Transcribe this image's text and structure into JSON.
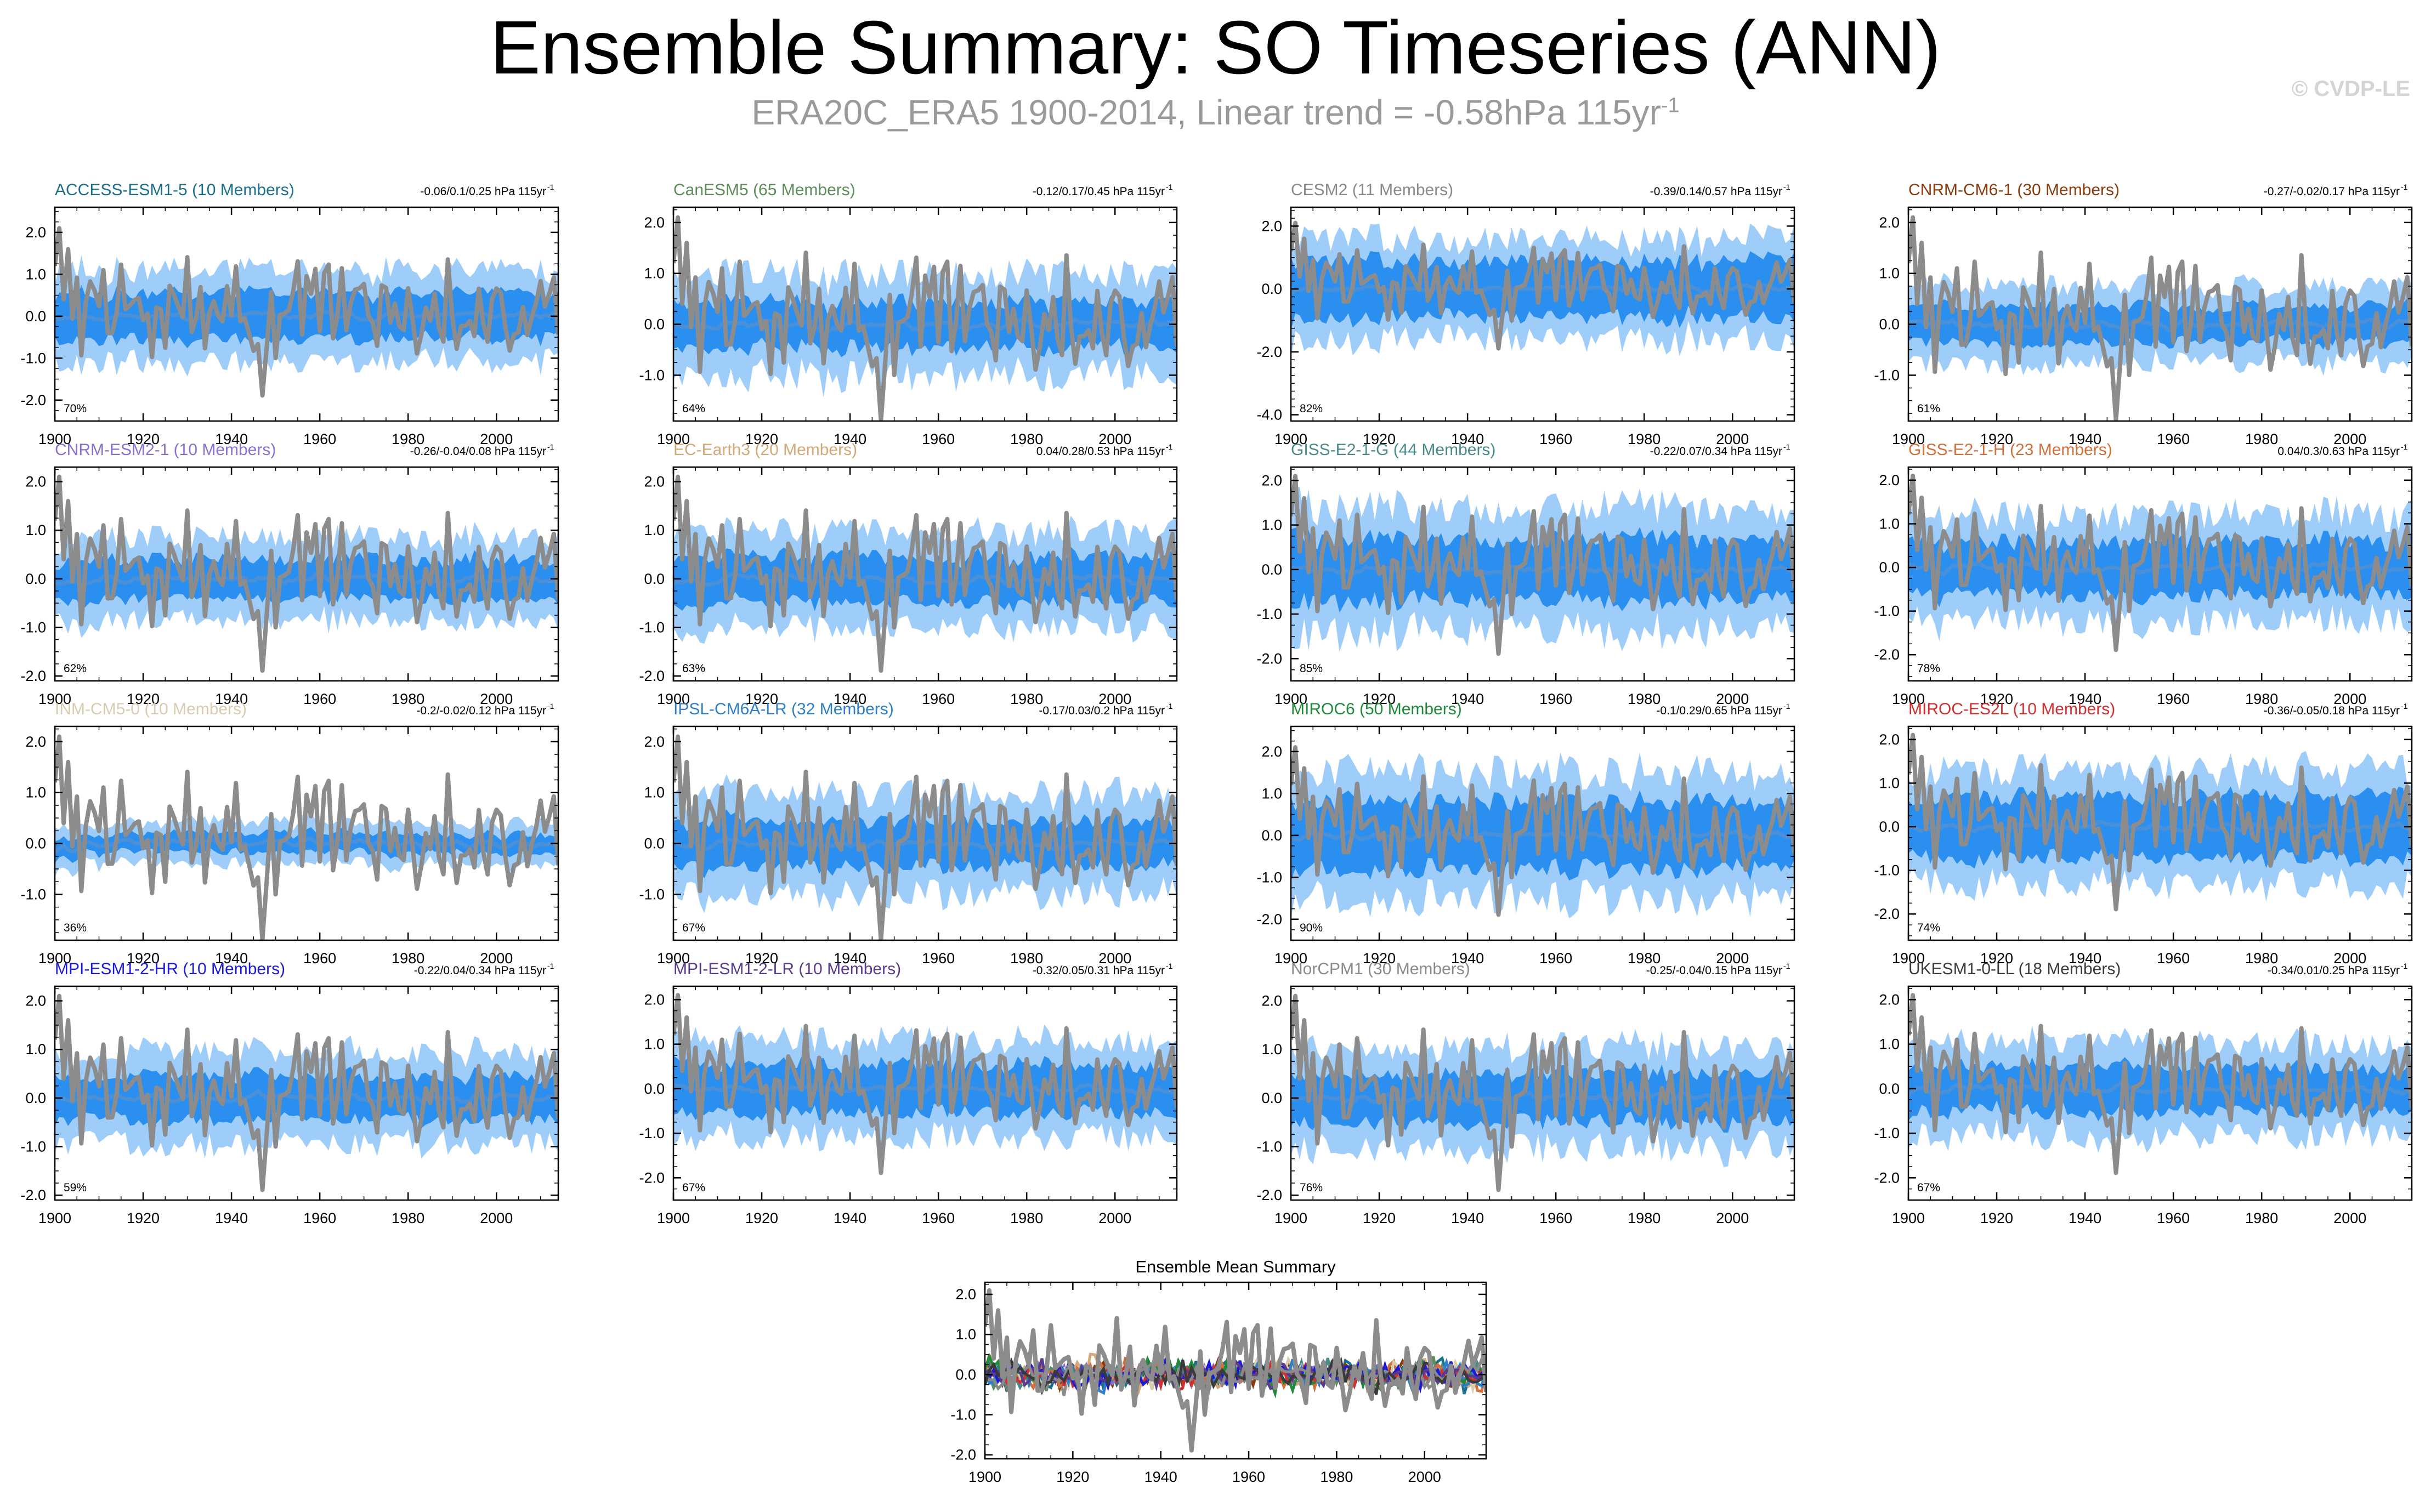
{
  "page": {
    "title": "Ensemble Summary: SO Timeseries (ANN)",
    "subtitle_main": "ERA20C_ERA5 1900-2014, Linear trend = -0.58hPa 115yr",
    "subtitle_sup": "-1",
    "copyright": "© CVDP-LE"
  },
  "colors": {
    "obs": "#8c8c8c",
    "ens_mean": "#4a90d9",
    "band_inner": "#2b8ff0",
    "band_outer": "#9fcdfa"
  },
  "chart_data": [
    {
      "type": "line",
      "title": "ACCESS-ESM1-5 (10 Members)",
      "title_color": "#1a6f8a",
      "trend": "-0.06/0.1/0.25 hPa 115yr",
      "pct": "70%",
      "ylim": [
        -2.5,
        2.6
      ],
      "yticks": [
        -2,
        -1,
        0,
        1,
        2
      ],
      "ytick_labels": [
        "-2.0",
        "-1.0",
        "0.0",
        "1.0",
        "2.0"
      ],
      "xlim": [
        1900,
        2014
      ],
      "xticks": [
        1900,
        1920,
        1940,
        1960,
        1980,
        2000
      ],
      "inner": 0.55,
      "outer": 1.1,
      "seed": 11
    },
    {
      "type": "line",
      "title": "CanESM5 (65 Members)",
      "title_color": "#5b8c5a",
      "trend": "-0.12/0.17/0.45 hPa 115yr",
      "pct": "64%",
      "ylim": [
        -1.9,
        2.3
      ],
      "yticks": [
        -1,
        0,
        1,
        2
      ],
      "ytick_labels": [
        "-1.0",
        "0.0",
        "1.0",
        "2.0"
      ],
      "xlim": [
        1900,
        2014
      ],
      "xticks": [
        1900,
        1920,
        1940,
        1960,
        1980,
        2000
      ],
      "inner": 0.45,
      "outer": 1.0,
      "seed": 23
    },
    {
      "type": "line",
      "title": "CESM2 (11 Members)",
      "title_color": "#8a8a8a",
      "trend": "-0.39/0.14/0.57 hPa 115yr",
      "pct": "82%",
      "ylim": [
        -4.2,
        2.6
      ],
      "yticks": [
        -4,
        -2,
        0,
        2
      ],
      "ytick_labels": [
        "-4.0",
        "-2.0",
        "0.0",
        "2.0"
      ],
      "xlim": [
        1900,
        2014
      ],
      "xticks": [
        1900,
        1920,
        1940,
        1960,
        1980,
        2000
      ],
      "inner": 0.9,
      "outer": 1.6,
      "seed": 37
    },
    {
      "type": "line",
      "title": "CNRM-CM6-1 (30 Members)",
      "title_color": "#8b3a0e",
      "trend": "-0.27/-0.02/0.17 hPa 115yr",
      "pct": "61%",
      "ylim": [
        -1.9,
        2.3
      ],
      "yticks": [
        -1,
        0,
        1,
        2
      ],
      "ytick_labels": [
        "-1.0",
        "0.0",
        "1.0",
        "2.0"
      ],
      "xlim": [
        1900,
        2014
      ],
      "xticks": [
        1900,
        1920,
        1940,
        1960,
        1980,
        2000
      ],
      "inner": 0.35,
      "outer": 0.75,
      "seed": 41
    },
    {
      "type": "line",
      "title": "CNRM-ESM2-1 (10 Members)",
      "title_color": "#8a6fd0",
      "trend": "-0.26/-0.04/0.08 hPa 115yr",
      "pct": "62%",
      "ylim": [
        -2.1,
        2.3
      ],
      "yticks": [
        -2,
        -1,
        0,
        1,
        2
      ],
      "ytick_labels": [
        "-2.0",
        "-1.0",
        "0.0",
        "1.0",
        "2.0"
      ],
      "xlim": [
        1900,
        2014
      ],
      "xticks": [
        1900,
        1920,
        1940,
        1960,
        1980,
        2000
      ],
      "inner": 0.4,
      "outer": 0.85,
      "seed": 53
    },
    {
      "type": "line",
      "title": "EC-Earth3 (20 Members)",
      "title_color": "#d4a878",
      "trend": "0.04/0.28/0.53 hPa 115yr",
      "pct": "63%",
      "ylim": [
        -2.1,
        2.3
      ],
      "yticks": [
        -2,
        -1,
        0,
        1,
        2
      ],
      "ytick_labels": [
        "-2.0",
        "-1.0",
        "0.0",
        "1.0",
        "2.0"
      ],
      "xlim": [
        1900,
        2014
      ],
      "xticks": [
        1900,
        1920,
        1940,
        1960,
        1980,
        2000
      ],
      "inner": 0.45,
      "outer": 0.95,
      "seed": 67
    },
    {
      "type": "line",
      "title": "GISS-E2-1-G (44 Members)",
      "title_color": "#4a8a8a",
      "trend": "-0.22/0.07/0.34 hPa 115yr",
      "pct": "85%",
      "ylim": [
        -2.5,
        2.3
      ],
      "yticks": [
        -2,
        -1,
        0,
        1,
        2
      ],
      "ytick_labels": [
        "-2.0",
        "-1.0",
        "0.0",
        "1.0",
        "2.0"
      ],
      "xlim": [
        1900,
        2014
      ],
      "xticks": [
        1900,
        1920,
        1940,
        1960,
        1980,
        2000
      ],
      "inner": 0.7,
      "outer": 1.4,
      "seed": 71
    },
    {
      "type": "line",
      "title": "GISS-E2-1-H (23 Members)",
      "title_color": "#d0703a",
      "trend": "0.04/0.3/0.63 hPa 115yr",
      "pct": "78%",
      "ylim": [
        -2.6,
        2.3
      ],
      "yticks": [
        -2,
        -1,
        0,
        1,
        2
      ],
      "ytick_labels": [
        "-2.0",
        "-1.0",
        "0.0",
        "1.0",
        "2.0"
      ],
      "xlim": [
        1900,
        2014
      ],
      "xticks": [
        1900,
        1920,
        1940,
        1960,
        1980,
        2000
      ],
      "inner": 0.6,
      "outer": 1.2,
      "seed": 83
    },
    {
      "type": "line",
      "title": "INM-CM5-0 (10 Members)",
      "title_color": "#d8ccb0",
      "trend": "-0.2/-0.02/0.12 hPa 115yr",
      "pct": "36%",
      "ylim": [
        -1.9,
        2.3
      ],
      "yticks": [
        -1,
        0,
        1,
        2
      ],
      "ytick_labels": [
        "-1.0",
        "0.0",
        "1.0",
        "2.0"
      ],
      "xlim": [
        1900,
        2014
      ],
      "xticks": [
        1900,
        1920,
        1940,
        1960,
        1980,
        2000
      ],
      "inner": 0.18,
      "outer": 0.4,
      "seed": 97
    },
    {
      "type": "line",
      "title": "IPSL-CM6A-LR (32 Members)",
      "title_color": "#2f7fc8",
      "trend": "-0.17/0.03/0.2 hPa 115yr",
      "pct": "67%",
      "ylim": [
        -1.9,
        2.3
      ],
      "yticks": [
        -1,
        0,
        1,
        2
      ],
      "ytick_labels": [
        "-1.0",
        "0.0",
        "1.0",
        "2.0"
      ],
      "xlim": [
        1900,
        2014
      ],
      "xticks": [
        1900,
        1920,
        1940,
        1960,
        1980,
        2000
      ],
      "inner": 0.45,
      "outer": 1.0,
      "seed": 101
    },
    {
      "type": "line",
      "title": "MIROC6 (50 Members)",
      "title_color": "#1f8a3a",
      "trend": "-0.1/0.29/0.65 hPa 115yr",
      "pct": "90%",
      "ylim": [
        -2.5,
        2.6
      ],
      "yticks": [
        -2,
        -1,
        0,
        1,
        2
      ],
      "ytick_labels": [
        "-2.0",
        "-1.0",
        "0.0",
        "1.0",
        "2.0"
      ],
      "xlim": [
        1900,
        2014
      ],
      "xticks": [
        1900,
        1920,
        1940,
        1960,
        1980,
        2000
      ],
      "inner": 0.8,
      "outer": 1.5,
      "seed": 113
    },
    {
      "type": "line",
      "title": "MIROC-ES2L (10 Members)",
      "title_color": "#d03030",
      "trend": "-0.36/-0.05/0.18 hPa 115yr",
      "pct": "74%",
      "ylim": [
        -2.6,
        2.3
      ],
      "yticks": [
        -2,
        -1,
        0,
        1,
        2
      ],
      "ytick_labels": [
        "-2.0",
        "-1.0",
        "0.0",
        "1.0",
        "2.0"
      ],
      "xlim": [
        1900,
        2014
      ],
      "xticks": [
        1900,
        1920,
        1940,
        1960,
        1980,
        2000
      ],
      "inner": 0.7,
      "outer": 1.3,
      "seed": 127
    },
    {
      "type": "line",
      "title": "MPI-ESM1-2-HR (10 Members)",
      "title_color": "#1a1ad8",
      "trend": "-0.22/0.04/0.34 hPa 115yr",
      "pct": "59%",
      "ylim": [
        -2.1,
        2.3
      ],
      "yticks": [
        -2,
        -1,
        0,
        1,
        2
      ],
      "ytick_labels": [
        "-2.0",
        "-1.0",
        "0.0",
        "1.0",
        "2.0"
      ],
      "xlim": [
        1900,
        2014
      ],
      "xticks": [
        1900,
        1920,
        1940,
        1960,
        1980,
        2000
      ],
      "inner": 0.45,
      "outer": 0.95,
      "seed": 131
    },
    {
      "type": "line",
      "title": "MPI-ESM1-2-LR (10 Members)",
      "title_color": "#5a3a8a",
      "trend": "-0.32/0.05/0.31 hPa 115yr",
      "pct": "67%",
      "ylim": [
        -2.5,
        2.3
      ],
      "yticks": [
        -2,
        -1,
        0,
        1,
        2
      ],
      "ytick_labels": [
        "-2.0",
        "-1.0",
        "0.0",
        "1.0",
        "2.0"
      ],
      "xlim": [
        1900,
        2014
      ],
      "xticks": [
        1900,
        1920,
        1940,
        1960,
        1980,
        2000
      ],
      "inner": 0.55,
      "outer": 1.1,
      "seed": 139
    },
    {
      "type": "line",
      "title": "NorCPM1 (30 Members)",
      "title_color": "#8a8a8a",
      "trend": "-0.25/-0.04/0.15 hPa 115yr",
      "pct": "76%",
      "ylim": [
        -2.1,
        2.3
      ],
      "yticks": [
        -2,
        -1,
        0,
        1,
        2
      ],
      "ytick_labels": [
        "-2.0",
        "-1.0",
        "0.0",
        "1.0",
        "2.0"
      ],
      "xlim": [
        1900,
        2014
      ],
      "xticks": [
        1900,
        1920,
        1940,
        1960,
        1980,
        2000
      ],
      "inner": 0.5,
      "outer": 1.05,
      "seed": 149
    },
    {
      "type": "line",
      "title": "UKESM1-0-LL (18 Members)",
      "title_color": "#3a3a3a",
      "trend": "-0.34/0.01/0.25 hPa 115yr",
      "pct": "67%",
      "ylim": [
        -2.5,
        2.3
      ],
      "yticks": [
        -2,
        -1,
        0,
        1,
        2
      ],
      "ytick_labels": [
        "-2.0",
        "-1.0",
        "0.0",
        "1.0",
        "2.0"
      ],
      "xlim": [
        1900,
        2014
      ],
      "xticks": [
        1900,
        1920,
        1940,
        1960,
        1980,
        2000
      ],
      "inner": 0.5,
      "outer": 1.05,
      "seed": 157
    },
    {
      "type": "line",
      "summary": true,
      "title": "Ensemble Mean Summary",
      "title_color": "#000000",
      "trend": "",
      "pct": "",
      "ylim": [
        -2.1,
        2.3
      ],
      "yticks": [
        -2,
        -1,
        0,
        1,
        2
      ],
      "ytick_labels": [
        "-2.0",
        "-1.0",
        "0.0",
        "1.0",
        "2.0"
      ],
      "xlim": [
        1900,
        2014
      ],
      "xticks": [
        1900,
        1920,
        1940,
        1960,
        1980,
        2000
      ],
      "inner": 0,
      "outer": 0,
      "seed": 163,
      "series_colors": [
        "#1a6f8a",
        "#5b8c5a",
        "#8a8a8a",
        "#8b3a0e",
        "#8a6fd0",
        "#d4a878",
        "#4a8a8a",
        "#d0703a",
        "#d8ccb0",
        "#2f7fc8",
        "#1f8a3a",
        "#d03030",
        "#1a1ad8",
        "#5a3a8a",
        "#8a8a8a",
        "#3a3a3a"
      ]
    }
  ]
}
